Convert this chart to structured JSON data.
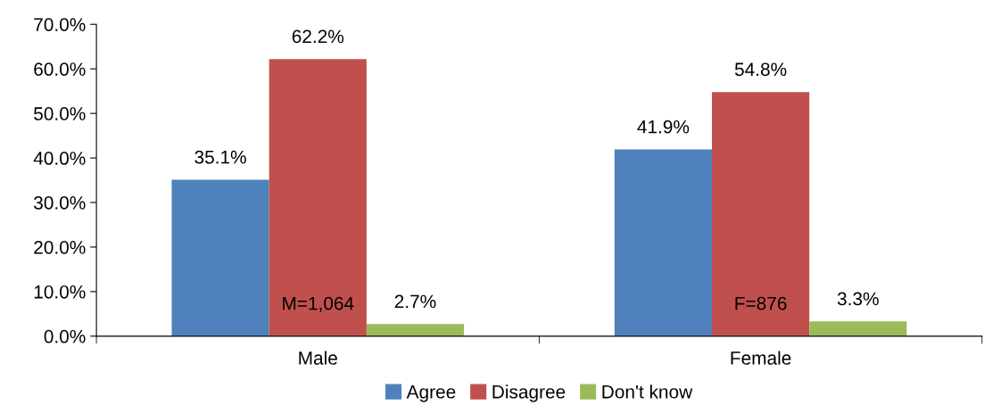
{
  "chart_data": {
    "type": "bar",
    "categories": [
      "Male",
      "Female"
    ],
    "series": [
      {
        "name": "Agree",
        "color": "#4f81bd",
        "values": [
          35.1,
          41.9
        ],
        "value_labels": [
          "35.1%",
          "41.9%"
        ]
      },
      {
        "name": "Disagree",
        "color": "#c0504d",
        "values": [
          62.2,
          54.8
        ],
        "value_labels": [
          "62.2%",
          "54.8%"
        ]
      },
      {
        "name": "Don't know",
        "color": "#9bbb59",
        "values": [
          2.7,
          3.3
        ],
        "value_labels": [
          "2.7%",
          "3.3%"
        ]
      }
    ],
    "ylim": [
      0,
      70
    ],
    "yticks": [
      {
        "value": 0,
        "label": "0.0%"
      },
      {
        "value": 10,
        "label": "10.0%"
      },
      {
        "value": 20,
        "label": "20.0%"
      },
      {
        "value": 30,
        "label": "30.0%"
      },
      {
        "value": 40,
        "label": "40.0%"
      },
      {
        "value": 50,
        "label": "50.0%"
      },
      {
        "value": 60,
        "label": "60.0%"
      },
      {
        "value": 70,
        "label": "70.0%"
      }
    ],
    "annotations": [
      "M=1,064",
      "F=876"
    ],
    "grid": false,
    "legend": "bottom"
  }
}
